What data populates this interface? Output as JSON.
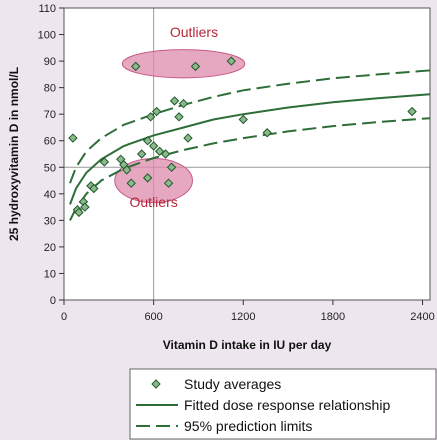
{
  "chart_data": {
    "type": "scatter",
    "xlabel": "Vitamin D intake in IU per day",
    "ylabel": "25 hydroxyvitamin D in nmol/L",
    "xlim": [
      0,
      2450
    ],
    "ylim": [
      0,
      110
    ],
    "xticks": [
      0,
      600,
      1200,
      1800,
      2400
    ],
    "yticks": [
      0,
      10,
      20,
      30,
      40,
      50,
      60,
      70,
      80,
      90,
      100,
      110
    ],
    "reference_lines": {
      "x": 600,
      "y": 50
    },
    "grid": false,
    "legend_position": "bottom-right",
    "series": [
      {
        "name": "Study averages",
        "kind": "points",
        "points": [
          {
            "x": 60,
            "y": 61
          },
          {
            "x": 90,
            "y": 34
          },
          {
            "x": 100,
            "y": 33
          },
          {
            "x": 130,
            "y": 37
          },
          {
            "x": 140,
            "y": 35
          },
          {
            "x": 180,
            "y": 43
          },
          {
            "x": 200,
            "y": 42
          },
          {
            "x": 270,
            "y": 52
          },
          {
            "x": 380,
            "y": 53
          },
          {
            "x": 400,
            "y": 51
          },
          {
            "x": 420,
            "y": 49
          },
          {
            "x": 450,
            "y": 44
          },
          {
            "x": 480,
            "y": 88
          },
          {
            "x": 520,
            "y": 55
          },
          {
            "x": 560,
            "y": 60
          },
          {
            "x": 560,
            "y": 46
          },
          {
            "x": 580,
            "y": 69
          },
          {
            "x": 600,
            "y": 58
          },
          {
            "x": 620,
            "y": 71
          },
          {
            "x": 640,
            "y": 56
          },
          {
            "x": 680,
            "y": 55
          },
          {
            "x": 700,
            "y": 44
          },
          {
            "x": 720,
            "y": 50
          },
          {
            "x": 740,
            "y": 75
          },
          {
            "x": 770,
            "y": 69
          },
          {
            "x": 800,
            "y": 74
          },
          {
            "x": 830,
            "y": 61
          },
          {
            "x": 880,
            "y": 88
          },
          {
            "x": 1120,
            "y": 90
          },
          {
            "x": 1200,
            "y": 68
          },
          {
            "x": 1360,
            "y": 63
          },
          {
            "x": 2330,
            "y": 71
          }
        ]
      },
      {
        "name": "Fitted dose response relationship",
        "kind": "line",
        "style": "solid",
        "points": [
          {
            "x": 40,
            "y": 36
          },
          {
            "x": 80,
            "y": 42
          },
          {
            "x": 150,
            "y": 48
          },
          {
            "x": 250,
            "y": 53
          },
          {
            "x": 400,
            "y": 58
          },
          {
            "x": 600,
            "y": 62
          },
          {
            "x": 800,
            "y": 65
          },
          {
            "x": 1000,
            "y": 68
          },
          {
            "x": 1200,
            "y": 70
          },
          {
            "x": 1500,
            "y": 72.5
          },
          {
            "x": 1800,
            "y": 74.5
          },
          {
            "x": 2100,
            "y": 76
          },
          {
            "x": 2450,
            "y": 77.5
          }
        ]
      },
      {
        "name": "95% prediction limits",
        "kind": "line",
        "style": "dashed",
        "points": [
          {
            "x": 40,
            "y": 44
          },
          {
            "x": 80,
            "y": 50
          },
          {
            "x": 150,
            "y": 56
          },
          {
            "x": 250,
            "y": 61
          },
          {
            "x": 400,
            "y": 66
          },
          {
            "x": 600,
            "y": 70
          },
          {
            "x": 800,
            "y": 73.5
          },
          {
            "x": 1000,
            "y": 76.5
          },
          {
            "x": 1200,
            "y": 79
          },
          {
            "x": 1500,
            "y": 81.5
          },
          {
            "x": 1800,
            "y": 83.5
          },
          {
            "x": 2100,
            "y": 85
          },
          {
            "x": 2450,
            "y": 86.5
          }
        ]
      },
      {
        "name": "",
        "kind": "line",
        "style": "dashed",
        "points": [
          {
            "x": 40,
            "y": 30
          },
          {
            "x": 80,
            "y": 34.5
          },
          {
            "x": 150,
            "y": 40
          },
          {
            "x": 250,
            "y": 45
          },
          {
            "x": 400,
            "y": 49.5
          },
          {
            "x": 600,
            "y": 53.5
          },
          {
            "x": 800,
            "y": 56.5
          },
          {
            "x": 1000,
            "y": 59
          },
          {
            "x": 1200,
            "y": 61
          },
          {
            "x": 1500,
            "y": 63.5
          },
          {
            "x": 1800,
            "y": 65.5
          },
          {
            "x": 2100,
            "y": 67
          },
          {
            "x": 2450,
            "y": 68.5
          }
        ]
      }
    ],
    "annotations": [
      {
        "label": "Outliers",
        "label_x": 870,
        "label_y": 99,
        "center_x": 800,
        "center_y": 89,
        "rx": 410,
        "ry": 5.3
      },
      {
        "label": "Outliers",
        "label_x": 600,
        "label_y": 35,
        "center_x": 600,
        "center_y": 45,
        "rx": 260,
        "ry": 8.3
      }
    ]
  },
  "colors": {
    "background": "#ede6ee",
    "plot_background": "#ffffff",
    "point_fill": "#8cb88c",
    "point_stroke": "#1f5a2c",
    "line": "#2d6e38",
    "outlier_fill": "#de8aac",
    "outlier_stroke": "#c85a86",
    "outlier_text": "#b5283a",
    "reference_line": "#9a9a9a"
  }
}
